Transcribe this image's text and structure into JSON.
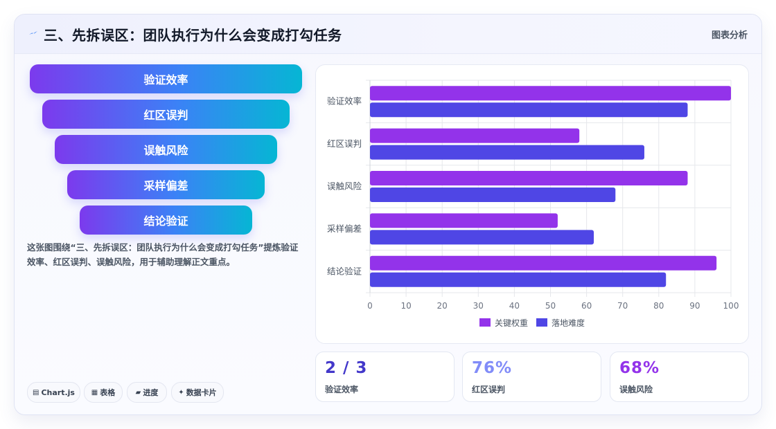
{
  "header": {
    "title": "三、先拆误区：团队执行为什么会变成打勾任务",
    "tag": "图表分析",
    "icon": "spark-icon"
  },
  "funnel": {
    "items": [
      "验证效率",
      "红区误判",
      "误触风险",
      "采样偏差",
      "结论验证"
    ]
  },
  "description": "这张图围绕“三、先拆误区：团队执行为什么会变成打勾任务”提炼验证效率、红区误判、误触风险，用于辅助理解正文重点。",
  "chips": [
    {
      "icon": "table-icon",
      "label": "Chart.js"
    },
    {
      "icon": "grid-icon",
      "label": "表格"
    },
    {
      "icon": "progress-icon",
      "label": "进度"
    },
    {
      "icon": "sparkle-icon",
      "label": "数据卡片"
    }
  ],
  "kpis": [
    {
      "value": "2 / 3",
      "label": "验证效率",
      "color": "#4338ca"
    },
    {
      "value": "76%",
      "label": "红区误判",
      "color": "#818cf8"
    },
    {
      "value": "68%",
      "label": "误触风险",
      "color": "#9333ea"
    }
  ],
  "chart_data": {
    "type": "bar",
    "orientation": "horizontal",
    "categories": [
      "验证效率",
      "红区误判",
      "误触风险",
      "采样偏差",
      "结论验证"
    ],
    "series": [
      {
        "name": "关键权重",
        "values": [
          100,
          58,
          88,
          52,
          96
        ],
        "color": "#9333ea"
      },
      {
        "name": "落地难度",
        "values": [
          88,
          76,
          68,
          62,
          82
        ],
        "color": "#4f46e5"
      }
    ],
    "xlim": [
      0,
      100
    ],
    "xticks": [
      0,
      10,
      20,
      30,
      40,
      50,
      60,
      70,
      80,
      90,
      100
    ],
    "grid": true,
    "legend": "bottom"
  }
}
